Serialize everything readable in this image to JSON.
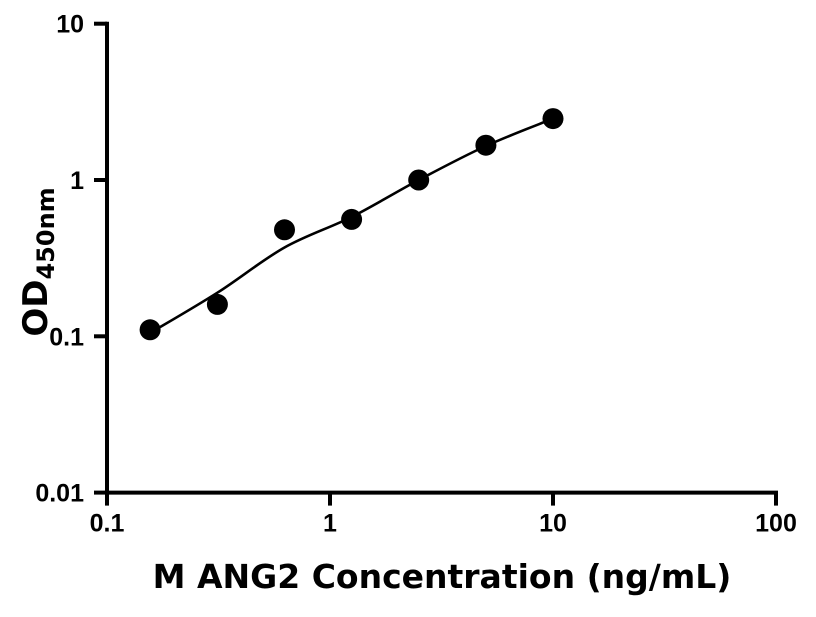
{
  "figure": {
    "background_color": "#ffffff",
    "axis_color": "#000000"
  },
  "chart_data": {
    "type": "scatter",
    "subtype": "elisa-standard-curve",
    "title": "",
    "xlabel": "M ANG2 Concentration (ng/mL)",
    "ylabel_main": "OD",
    "ylabel_sub": "450nm",
    "x_scale": "log",
    "y_scale": "log",
    "xlim": [
      0.1,
      100
    ],
    "ylim": [
      0.01,
      10
    ],
    "grid": false,
    "legend": false,
    "x_ticks": [
      {
        "v": 0.1,
        "label": "0.1"
      },
      {
        "v": 1,
        "label": "1"
      },
      {
        "v": 10,
        "label": "10"
      },
      {
        "v": 100,
        "label": "100"
      }
    ],
    "y_ticks": [
      {
        "v": 0.01,
        "label": "0.01"
      },
      {
        "v": 0.1,
        "label": "0.1"
      },
      {
        "v": 1,
        "label": "1"
      },
      {
        "v": 10,
        "label": "10"
      }
    ],
    "series": [
      {
        "name": "standard-points",
        "kind": "scatter",
        "marker": "circle",
        "color": "#000000",
        "points": [
          {
            "x": 0.156,
            "y": 0.11
          },
          {
            "x": 0.3125,
            "y": 0.16
          },
          {
            "x": 0.625,
            "y": 0.48
          },
          {
            "x": 1.25,
            "y": 0.56
          },
          {
            "x": 2.5,
            "y": 1.0
          },
          {
            "x": 5,
            "y": 1.67
          },
          {
            "x": 10,
            "y": 2.47
          }
        ]
      },
      {
        "name": "fit-line",
        "kind": "line",
        "color": "#000000",
        "points": [
          {
            "x": 0.156,
            "y": 0.105
          },
          {
            "x": 0.3125,
            "y": 0.19
          },
          {
            "x": 0.625,
            "y": 0.37
          },
          {
            "x": 1.25,
            "y": 0.58
          },
          {
            "x": 2.5,
            "y": 1.0
          },
          {
            "x": 5,
            "y": 1.65
          },
          {
            "x": 10,
            "y": 2.47
          }
        ]
      }
    ]
  }
}
